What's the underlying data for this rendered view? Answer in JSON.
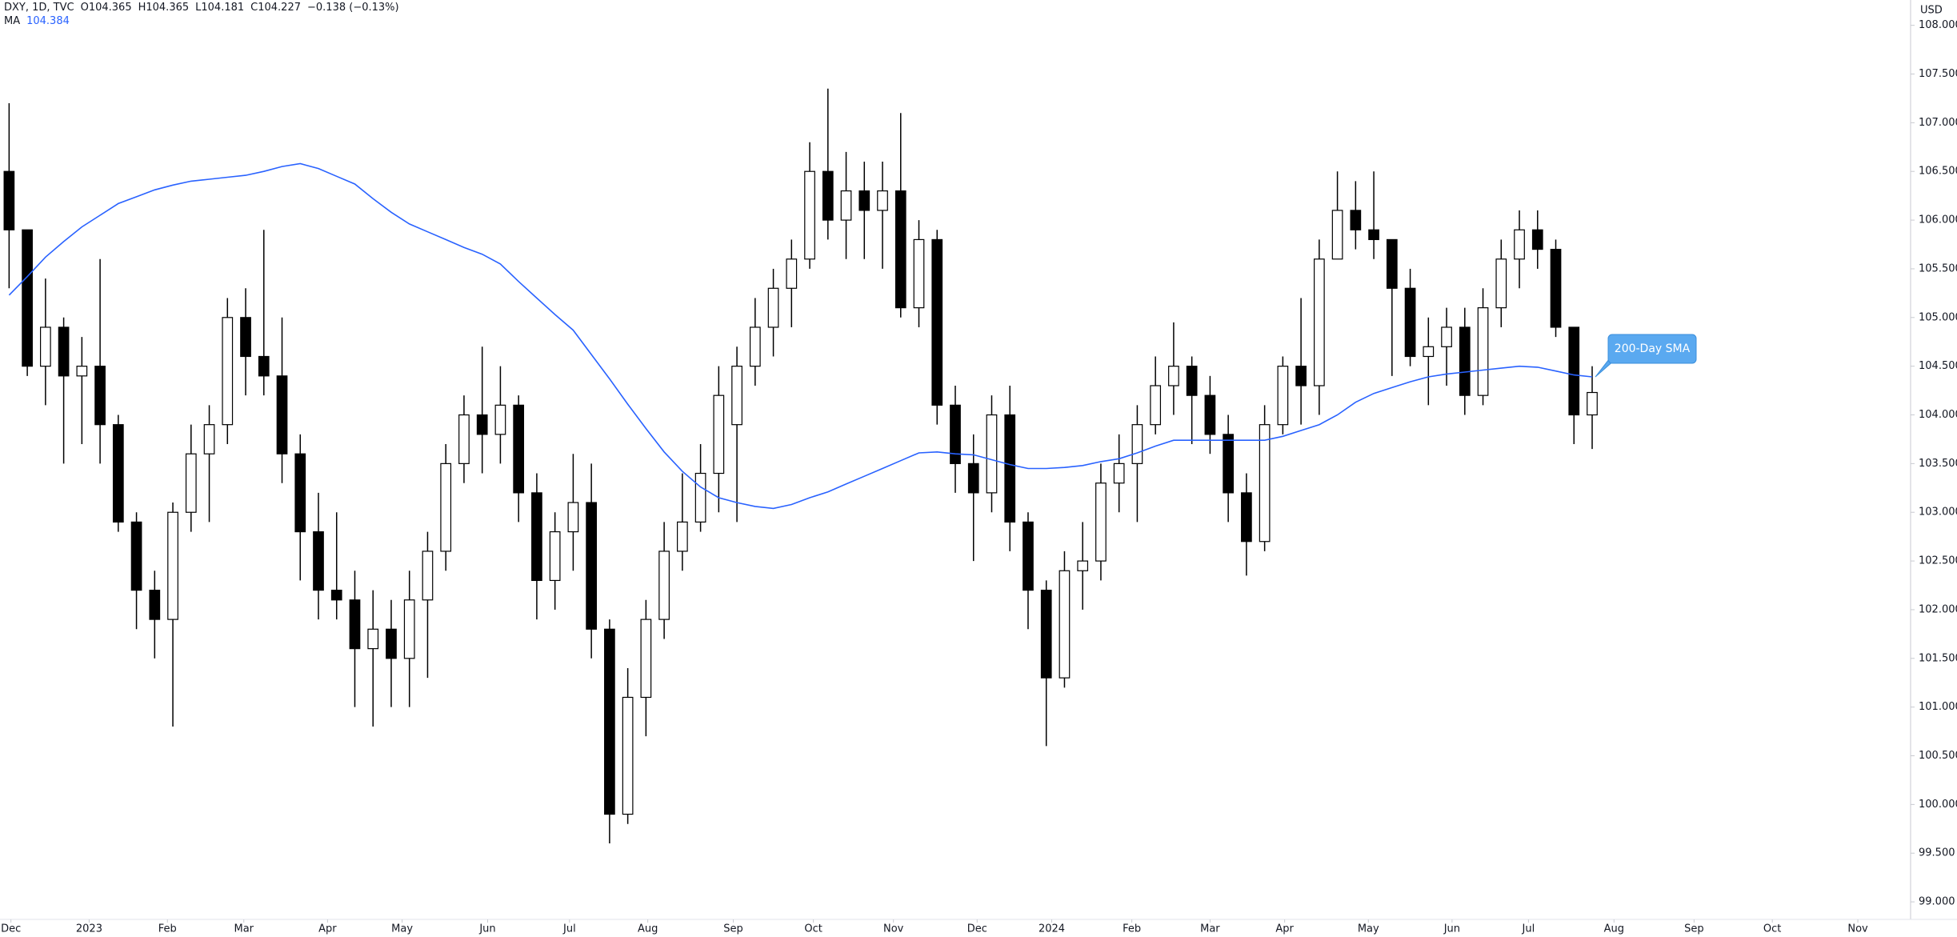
{
  "header": {
    "symbol": "DXY, 1D, TVC",
    "open": "O104.365",
    "high": "H104.365",
    "low": "L104.181",
    "close": "C104.227",
    "change": "−0.138 (−0.13%)",
    "ma_name": "MA",
    "ma_value": "104.384"
  },
  "chart_data": {
    "type": "candlestick",
    "currency": "USD",
    "annotation": "200-Day SMA",
    "categories": [
      null,
      null,
      null,
      null,
      null,
      null,
      null,
      null,
      null,
      null,
      null,
      null,
      null,
      null,
      null,
      null,
      null,
      null,
      null,
      null,
      null,
      null,
      null,
      null,
      null,
      null,
      null,
      null,
      null,
      null,
      null,
      null,
      null,
      null,
      null,
      null,
      null,
      null,
      null,
      null,
      null,
      null,
      null,
      null,
      null,
      null,
      null,
      null,
      null,
      null,
      null,
      null,
      null,
      null,
      null,
      null,
      null,
      null,
      null,
      null,
      null,
      null,
      null,
      null,
      null,
      null,
      null,
      null,
      null,
      null,
      null,
      null,
      null,
      null,
      null,
      null,
      null,
      null,
      null,
      null,
      null,
      null,
      null,
      null,
      null,
      null,
      null,
      null
    ],
    "open": [
      106.5,
      105.9,
      104.5,
      104.9,
      104.4,
      104.5,
      103.9,
      102.9,
      102.2,
      101.9,
      103.0,
      103.6,
      103.9,
      105.0,
      104.6,
      104.4,
      103.6,
      102.8,
      102.2,
      102.1,
      101.6,
      101.8,
      101.5,
      102.1,
      102.6,
      103.5,
      104.0,
      103.8,
      104.1,
      103.2,
      102.3,
      102.8,
      103.1,
      101.8,
      99.9,
      101.1,
      101.9,
      102.6,
      102.9,
      103.4,
      103.9,
      104.5,
      104.9,
      105.3,
      105.6,
      106.5,
      106.0,
      106.3,
      106.1,
      106.3,
      105.1,
      105.8,
      104.1,
      103.5,
      103.2,
      104.0,
      102.9,
      102.2,
      101.3,
      102.4,
      102.5,
      103.3,
      103.5,
      103.9,
      104.3,
      104.5,
      104.2,
      103.8,
      103.2,
      102.7,
      103.9,
      104.5,
      104.3,
      105.6,
      106.1,
      105.9,
      105.8,
      105.3,
      104.6,
      104.7,
      104.9,
      104.2,
      105.1,
      105.6,
      105.9,
      105.7,
      104.9,
      104.0
    ],
    "high": [
      107.2,
      105.9,
      105.4,
      105.0,
      104.8,
      105.6,
      104.0,
      103.0,
      102.4,
      103.1,
      103.9,
      104.1,
      105.2,
      105.3,
      105.9,
      105.0,
      103.8,
      103.2,
      103.0,
      102.4,
      102.2,
      102.1,
      102.4,
      102.8,
      103.7,
      104.2,
      104.7,
      104.5,
      104.2,
      103.4,
      103.0,
      103.6,
      103.5,
      101.9,
      101.4,
      102.1,
      102.9,
      103.4,
      103.7,
      104.5,
      104.7,
      105.2,
      105.5,
      105.8,
      106.8,
      107.35,
      106.7,
      106.6,
      106.6,
      107.1,
      106.0,
      105.9,
      104.3,
      103.8,
      104.2,
      104.3,
      103.0,
      102.3,
      102.6,
      102.9,
      103.5,
      103.8,
      104.1,
      104.6,
      104.95,
      104.6,
      104.4,
      104.0,
      103.4,
      104.1,
      104.6,
      105.2,
      105.8,
      106.5,
      106.4,
      106.5,
      105.8,
      105.5,
      105.0,
      105.1,
      105.1,
      105.3,
      105.8,
      106.1,
      106.1,
      105.8,
      104.9,
      104.5
    ],
    "low": [
      105.3,
      104.4,
      104.1,
      103.5,
      103.7,
      103.5,
      102.8,
      101.8,
      101.5,
      100.8,
      102.8,
      102.9,
      103.7,
      104.2,
      104.2,
      103.3,
      102.3,
      101.9,
      101.9,
      101.0,
      100.8,
      101.0,
      101.0,
      101.3,
      102.4,
      103.3,
      103.4,
      103.5,
      102.9,
      101.9,
      102.0,
      102.4,
      101.5,
      99.6,
      99.8,
      100.7,
      101.7,
      102.4,
      102.8,
      103.0,
      102.9,
      104.3,
      104.6,
      104.9,
      105.5,
      105.8,
      105.6,
      105.6,
      105.5,
      105.0,
      104.9,
      103.9,
      103.2,
      102.5,
      103.0,
      102.6,
      101.8,
      100.6,
      101.2,
      102.0,
      102.3,
      103.0,
      102.9,
      103.8,
      104.0,
      103.7,
      103.6,
      102.9,
      102.35,
      102.6,
      103.8,
      103.9,
      104.0,
      105.6,
      105.7,
      105.6,
      104.4,
      104.5,
      104.1,
      104.3,
      104.0,
      104.1,
      104.9,
      105.3,
      105.5,
      104.8,
      103.7,
      103.65
    ],
    "close": [
      105.9,
      104.5,
      104.9,
      104.4,
      104.5,
      103.9,
      102.9,
      102.2,
      101.9,
      103.0,
      103.6,
      103.9,
      105.0,
      104.6,
      104.4,
      103.6,
      102.8,
      102.2,
      102.1,
      101.6,
      101.8,
      101.5,
      102.1,
      102.6,
      103.5,
      104.0,
      103.8,
      104.1,
      103.2,
      102.3,
      102.8,
      103.1,
      101.8,
      99.9,
      101.1,
      101.9,
      102.6,
      102.9,
      103.4,
      104.2,
      104.5,
      104.9,
      105.3,
      105.6,
      106.5,
      106.0,
      106.3,
      106.1,
      106.3,
      105.1,
      105.8,
      104.1,
      103.5,
      103.2,
      104.0,
      102.9,
      102.2,
      101.3,
      102.4,
      102.5,
      103.3,
      103.5,
      103.9,
      104.3,
      104.5,
      104.2,
      103.8,
      103.2,
      102.7,
      103.9,
      104.5,
      104.3,
      105.6,
      106.1,
      105.9,
      105.8,
      105.3,
      104.6,
      104.7,
      104.9,
      104.2,
      105.1,
      105.6,
      105.9,
      105.7,
      104.9,
      104.0,
      104.23
    ],
    "sma": {
      "color": "#2962ff",
      "values": [
        105.23,
        105.42,
        105.62,
        105.78,
        105.93,
        106.05,
        106.17,
        106.24,
        106.31,
        106.36,
        106.4,
        106.42,
        106.44,
        106.46,
        106.5,
        106.55,
        106.58,
        106.53,
        106.45,
        106.37,
        106.22,
        106.08,
        105.96,
        105.88,
        105.8,
        105.72,
        105.65,
        105.55,
        105.37,
        105.2,
        105.03,
        104.87,
        104.62,
        104.37,
        104.11,
        103.86,
        103.62,
        103.42,
        103.26,
        103.15,
        103.1,
        103.06,
        103.04,
        103.08,
        103.15,
        103.21,
        103.29,
        103.37,
        103.45,
        103.53,
        103.61,
        103.62,
        103.6,
        103.59,
        103.54,
        103.49,
        103.45,
        103.45,
        103.46,
        103.48,
        103.52,
        103.55,
        103.61,
        103.68,
        103.74,
        103.74,
        103.74,
        103.74,
        103.74,
        103.74,
        103.78,
        103.84,
        103.9,
        104.0,
        104.13,
        104.22,
        104.28,
        104.34,
        104.39,
        104.42,
        104.44,
        104.46,
        104.48,
        104.5,
        104.49,
        104.45,
        104.41,
        104.39
      ]
    },
    "up_color": "#ffffff",
    "down_color": "#000000",
    "xlim": [
      0,
      105
    ],
    "xticks": [
      {
        "value": 0.6,
        "label": "Dec"
      },
      {
        "value": 4.9,
        "label": "2023"
      },
      {
        "value": 9.2,
        "label": "Feb"
      },
      {
        "value": 13.4,
        "label": "Mar"
      },
      {
        "value": 18.0,
        "label": "Apr"
      },
      {
        "value": 22.1,
        "label": "May"
      },
      {
        "value": 26.8,
        "label": "Jun"
      },
      {
        "value": 31.3,
        "label": "Jul"
      },
      {
        "value": 35.6,
        "label": "Aug"
      },
      {
        "value": 40.3,
        "label": "Sep"
      },
      {
        "value": 44.7,
        "label": "Oct"
      },
      {
        "value": 49.1,
        "label": "Nov"
      },
      {
        "value": 53.7,
        "label": "Dec"
      },
      {
        "value": 57.8,
        "label": "2024"
      },
      {
        "value": 62.2,
        "label": "Feb"
      },
      {
        "value": 66.5,
        "label": "Mar"
      },
      {
        "value": 70.6,
        "label": "Apr"
      },
      {
        "value": 75.2,
        "label": "May"
      },
      {
        "value": 79.8,
        "label": "Jun"
      },
      {
        "value": 84.0,
        "label": "Jul"
      },
      {
        "value": 88.7,
        "label": "Aug"
      },
      {
        "value": 93.1,
        "label": "Sep"
      },
      {
        "value": 97.4,
        "label": "Oct"
      },
      {
        "value": 102.1,
        "label": "Nov"
      }
    ],
    "ylim": [
      98.82,
      108.26
    ],
    "yticks": [
      {
        "value": 99,
        "label": "99.000"
      },
      {
        "value": 99.5,
        "label": "99.500"
      },
      {
        "value": 100,
        "label": "100.000"
      },
      {
        "value": 100.5,
        "label": "100.500"
      },
      {
        "value": 101,
        "label": "101.000"
      },
      {
        "value": 101.5,
        "label": "101.500"
      },
      {
        "value": 102,
        "label": "102.000"
      },
      {
        "value": 102.5,
        "label": "102.500"
      },
      {
        "value": 103,
        "label": "103.000"
      },
      {
        "value": 103.5,
        "label": "103.500"
      },
      {
        "value": 104,
        "label": "104.000"
      },
      {
        "value": 104.5,
        "label": "104.500"
      },
      {
        "value": 105,
        "label": "105.000"
      },
      {
        "value": 105.5,
        "label": "105.500"
      },
      {
        "value": 106,
        "label": "106.000"
      },
      {
        "value": 106.5,
        "label": "106.500"
      },
      {
        "value": 107,
        "label": "107.000"
      },
      {
        "value": 107.5,
        "label": "107.500"
      },
      {
        "value": 108,
        "label": "108.000"
      }
    ]
  }
}
